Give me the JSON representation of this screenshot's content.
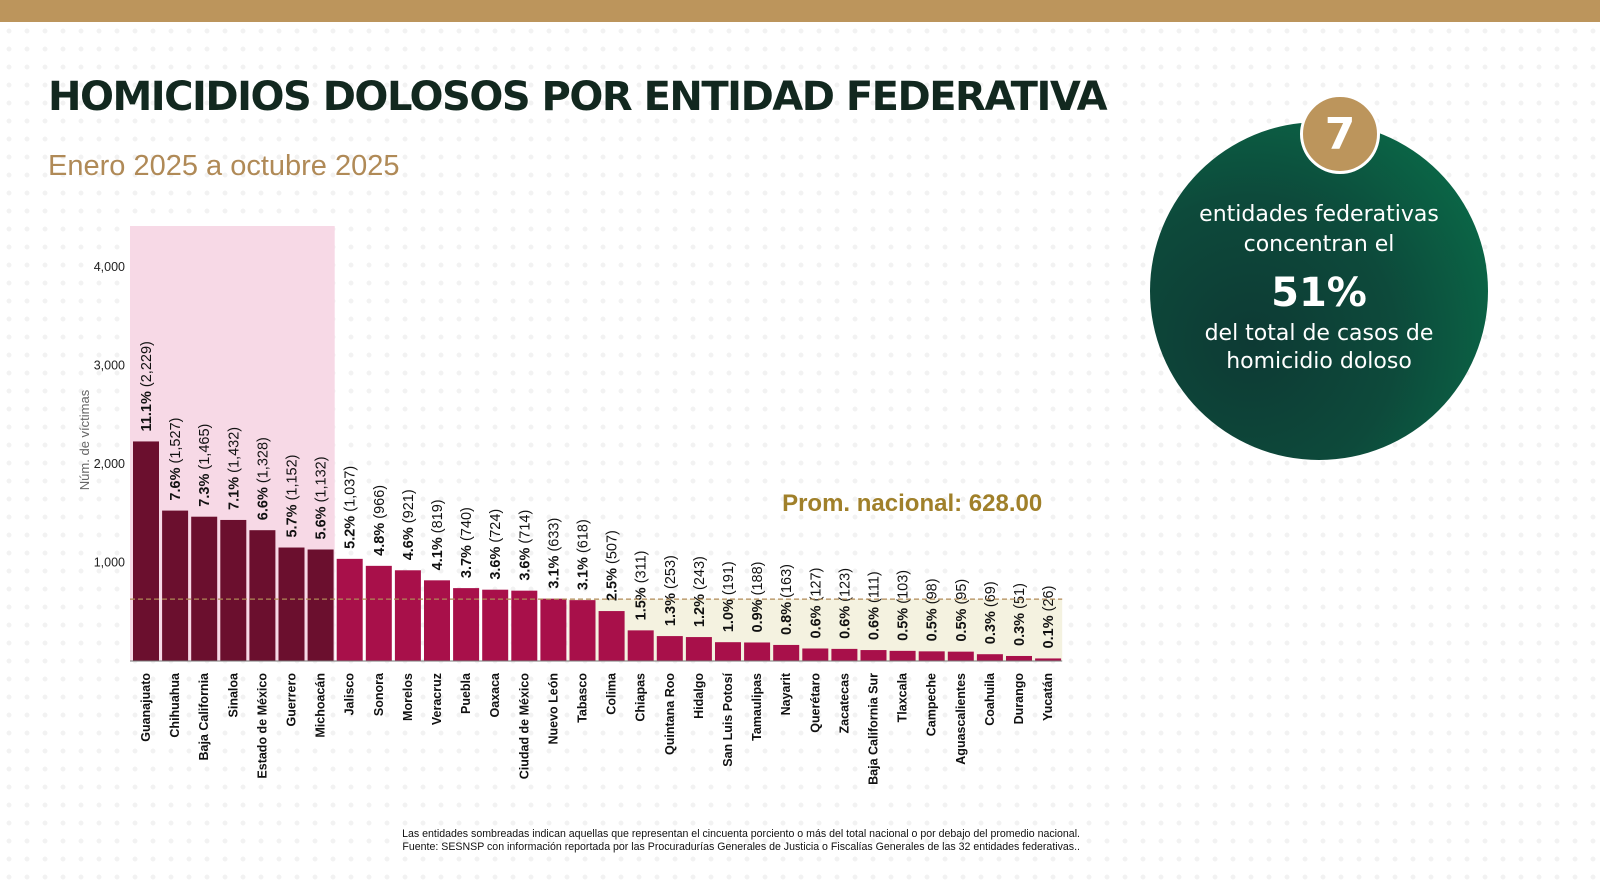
{
  "header": {
    "title": "HOMICIDIOS DOLOSOS POR ENTIDAD FEDERATIVA",
    "subtitle": "Enero 2025 a octubre 2025"
  },
  "callout": {
    "number": "7",
    "line1": "entidades federativas",
    "line2": "concentran el",
    "percent": "51%",
    "line3": "del total de casos de",
    "line4": "homicidio doloso"
  },
  "footnote": {
    "line1": "Las entidades sombreadas indican aquellas que representan el cincuenta porciento o más del total nacional o por debajo del promedio nacional.",
    "line2": "Fuente: SESNSP con información reportada por las Procuradurías Generales de Justicia o Fiscalías Generales de las 32 entidades federativas.."
  },
  "colors": {
    "accent": "#bc955c",
    "top_group_bar": "#6b0f2e",
    "other_bar": "#a8104a",
    "top_group_shade": "#f7d9e6",
    "below_average_shade": "#f4f2e0",
    "average_label": "#a0802a",
    "circle_green": "#0d5a43"
  },
  "chart_data": {
    "type": "bar",
    "ylabel": "Núm. de víctimas",
    "xlabel": "",
    "ylim": [
      0,
      4400
    ],
    "yticks": [
      1000,
      2000,
      3000,
      4000
    ],
    "ytick_labels": [
      "1,000",
      "2,000",
      "3,000",
      "4,000"
    ],
    "average": 628.0,
    "average_label": "Prom. nacional: 628.00",
    "highlighted_top_count": 7,
    "categories": [
      "Guanajuato",
      "Chihuahua",
      "Baja California",
      "Sinaloa",
      "Estado de México",
      "Guerrero",
      "Michoacán",
      "Jalisco",
      "Sonora",
      "Morelos",
      "Veracruz",
      "Puebla",
      "Oaxaca",
      "Ciudad de México",
      "Nuevo León",
      "Tabasco",
      "Colima",
      "Chiapas",
      "Quintana Roo",
      "Hidalgo",
      "San Luis Potosí",
      "Tamaulipas",
      "Nayarit",
      "Querétaro",
      "Zacatecas",
      "Baja California Sur",
      "Tlaxcala",
      "Campeche",
      "Aguascalientes",
      "Coahuila",
      "Durango",
      "Yucatán"
    ],
    "values": [
      2229,
      1527,
      1465,
      1432,
      1328,
      1152,
      1132,
      1037,
      966,
      921,
      819,
      740,
      724,
      714,
      633,
      618,
      507,
      311,
      253,
      243,
      191,
      188,
      163,
      127,
      123,
      111,
      103,
      98,
      95,
      69,
      51,
      26
    ],
    "percent_labels": [
      "11.1%",
      "7.6%",
      "7.3%",
      "7.1%",
      "6.6%",
      "5.7%",
      "5.6%",
      "5.2%",
      "4.8%",
      "4.6%",
      "4.1%",
      "3.7%",
      "3.6%",
      "3.6%",
      "3.1%",
      "3.1%",
      "2.5%",
      "1.5%",
      "1.3%",
      "1.2%",
      "1.0%",
      "0.9%",
      "0.8%",
      "0.6%",
      "0.6%",
      "0.6%",
      "0.5%",
      "0.5%",
      "0.5%",
      "0.3%",
      "0.3%",
      "0.1%"
    ],
    "count_labels": [
      "(2,229)",
      "(1,527)",
      "(1,465)",
      "(1,432)",
      "(1,328)",
      "(1,152)",
      "(1,132)",
      "(1,037)",
      "(966)",
      "(921)",
      "(819)",
      "(740)",
      "(724)",
      "(714)",
      "(633)",
      "(618)",
      "(507)",
      "(311)",
      "(253)",
      "(243)",
      "(191)",
      "(188)",
      "(163)",
      "(127)",
      "(123)",
      "(111)",
      "(103)",
      "(98)",
      "(95)",
      "(69)",
      "(51)",
      "(26)"
    ]
  }
}
